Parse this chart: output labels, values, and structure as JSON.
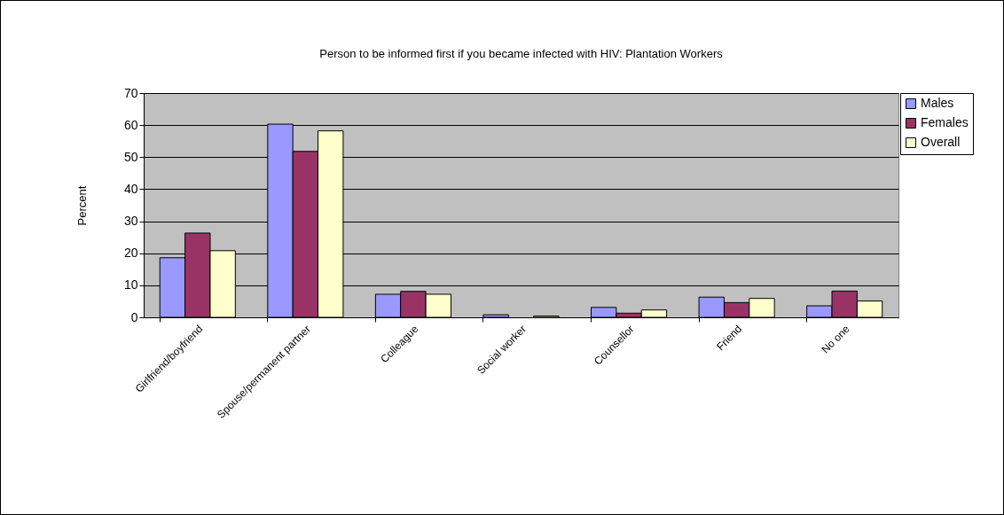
{
  "chart_data": {
    "type": "bar",
    "title": "Person to be informed first if you became infected with HIV: Plantation Workers",
    "ylabel": "Percent",
    "categories": [
      "Girlfriend/boyfriend",
      "Spouse/permanent partner",
      "Colleague",
      "Social worker",
      "Counsellor",
      "Friend",
      "No one"
    ],
    "series": [
      {
        "name": "Males",
        "color": "#9999ff",
        "values": [
          18.6,
          60.3,
          7.2,
          0.8,
          3.1,
          6.3,
          3.6
        ]
      },
      {
        "name": "Females",
        "color": "#993366",
        "values": [
          26.3,
          51.8,
          8.1,
          null,
          1.3,
          4.6,
          8.2
        ]
      },
      {
        "name": "Overall",
        "color": "#ffffcc",
        "values": [
          20.8,
          58.2,
          7.2,
          0.4,
          2.3,
          5.9,
          5.1
        ]
      }
    ],
    "ylim": [
      0,
      70
    ],
    "yticks": [
      0,
      10,
      20,
      30,
      40,
      50,
      60,
      70
    ],
    "grid": "y",
    "legend": "right"
  }
}
